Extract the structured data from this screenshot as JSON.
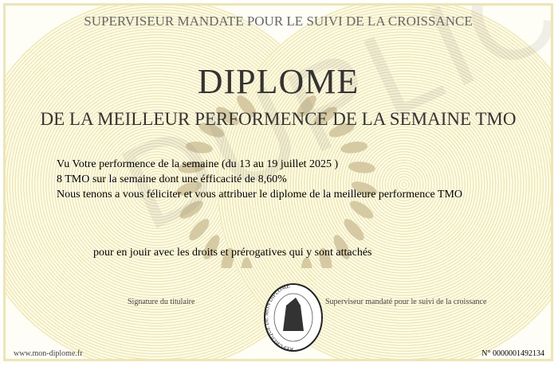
{
  "header": {
    "supervisor_title": "SUPERVISEUR MANDATE POUR LE SUIVI DE LA CROISSANCE"
  },
  "title": "DIPLOME",
  "subtitle": "DE LA MEILLEUR PERFORMENCE DE LA SEMAINE TMO",
  "body_lines": [
    "Vu Votre performence de la semaine (du 13 au 19 juillet 2025 )",
    "8 TMO sur la semaine dont une éfficacité de 8,60%",
    "Nous tenons a vous féliciter et vous attribuer le diplome de la meilleure performence TMO"
  ],
  "closing": "pour en jouir avec les droits et prérogatives qui y sont attachés",
  "signatures": {
    "holder": "Signature du titulaire",
    "supervisor": "Superviseur mandaté pour le suivi de la croissance"
  },
  "seal": {
    "text": "REPUBLIQUE DE MON DIPLOME"
  },
  "watermark": "DUPLICATA",
  "footer": {
    "website": "www.mon-diplome.fr",
    "number": "N° 0000001492134"
  },
  "colors": {
    "rings": "#efe6a8",
    "border": "#ede6b4",
    "laurel": "#cfc39a"
  }
}
